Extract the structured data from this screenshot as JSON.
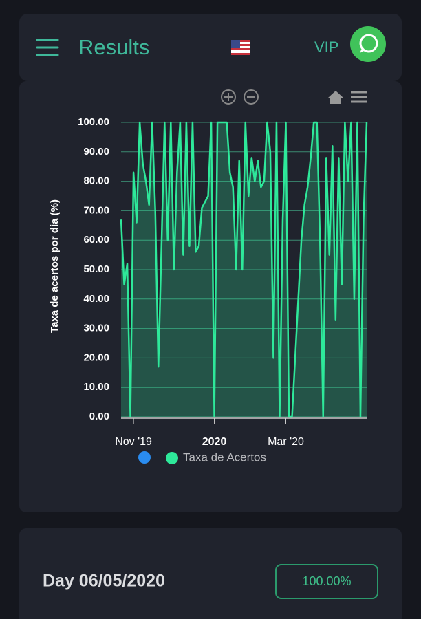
{
  "header": {
    "title": "Results",
    "vip": "VIP"
  },
  "chart_data": {
    "type": "area",
    "ylabel": "Taxa de acertos por dia (%)",
    "categories": [
      null,
      null,
      null,
      null,
      "Nov '19",
      null,
      null,
      null,
      null,
      null,
      null,
      null,
      null,
      null,
      null,
      null,
      null,
      null,
      null,
      null,
      null,
      null,
      null,
      null,
      null,
      null,
      null,
      null,
      null,
      null,
      "2020",
      null,
      null,
      null,
      null,
      null,
      null,
      null,
      null,
      null,
      null,
      null,
      null,
      null,
      null,
      null,
      null,
      null,
      null,
      null,
      null,
      null,
      null,
      "Mar '20",
      null,
      null,
      null,
      null,
      null,
      null,
      null,
      null,
      null,
      null,
      null,
      null,
      null,
      null,
      null,
      null,
      null,
      null,
      null,
      null,
      null,
      null,
      null,
      null,
      null,
      null
    ],
    "series": [
      {
        "name": "Taxa de Acertos",
        "color": "#2ee89a",
        "values": [
          67,
          45,
          52,
          0,
          83,
          66,
          100,
          86,
          80,
          72,
          100,
          70,
          17,
          58,
          100,
          60,
          100,
          50,
          83,
          100,
          55,
          100,
          58,
          100,
          56,
          58,
          71,
          73,
          75,
          100,
          0,
          100,
          100,
          100,
          100,
          83,
          78,
          50,
          87,
          50,
          100,
          75,
          88,
          80,
          87,
          78,
          80,
          100,
          90,
          20,
          100,
          0,
          67,
          100,
          0,
          0,
          20,
          40,
          60,
          72,
          78,
          88,
          100,
          100,
          60,
          0,
          88,
          55,
          92,
          33,
          88,
          45,
          100,
          80,
          100,
          40,
          100,
          0,
          67,
          100
        ]
      }
    ],
    "ylim": [
      0,
      100
    ],
    "yticks": [
      {
        "value": 0,
        "label": "0.00"
      },
      {
        "value": 10,
        "label": "10.00"
      },
      {
        "value": 20,
        "label": "20.00"
      },
      {
        "value": 30,
        "label": "30.00"
      },
      {
        "value": 40,
        "label": "40.00"
      },
      {
        "value": 50,
        "label": "50.00"
      },
      {
        "value": 60,
        "label": "60.00"
      },
      {
        "value": 70,
        "label": "70.00"
      },
      {
        "value": 80,
        "label": "80.00"
      },
      {
        "value": 90,
        "label": "90.00"
      },
      {
        "value": 100,
        "label": "100.00"
      }
    ],
    "grid": true
  },
  "day_card": {
    "title": "Day 06/05/2020",
    "badge": "100.00%"
  }
}
